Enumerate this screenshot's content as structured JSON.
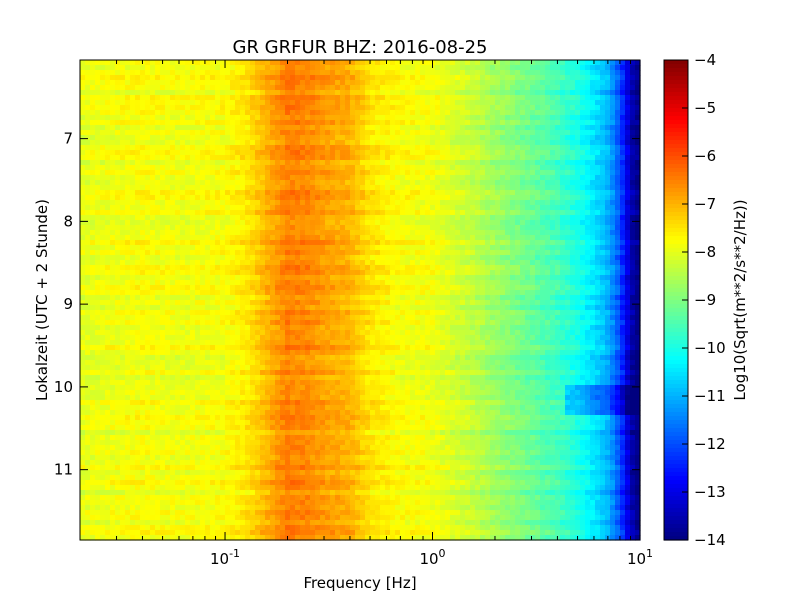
{
  "chart_data": {
    "type": "heatmap",
    "title": "GR GRFUR BHZ: 2016-08-25",
    "xlabel": "Frequency [Hz]",
    "ylabel": "Lokalzeit (UTC + 2 Stunde)",
    "x_scale": "log",
    "xlim": [
      0.02,
      10
    ],
    "x_ticks": [
      {
        "value": 0.1,
        "base": "10",
        "exp": "-1"
      },
      {
        "value": 1,
        "base": "10",
        "exp": "0"
      },
      {
        "value": 10,
        "base": "10",
        "exp": "1"
      }
    ],
    "ylim": [
      6.05,
      11.85
    ],
    "y_inverted": true,
    "y_ticks": [
      "7",
      "8",
      "9",
      "10",
      "11"
    ],
    "colorbar": {
      "label": "Log10(Sqrt(m**2/s**2/Hz))",
      "range": [
        -14,
        -4
      ],
      "ticks": [
        "-4",
        "-5",
        "-6",
        "-7",
        "-8",
        "-9",
        "-10",
        "-11",
        "-12",
        "-13",
        "-14"
      ],
      "colormap": "jet"
    },
    "spectrum_profile": {
      "frequency_hz": [
        0.02,
        0.04,
        0.06,
        0.1,
        0.13,
        0.16,
        0.2,
        0.25,
        0.3,
        0.4,
        0.5,
        0.7,
        1.0,
        1.5,
        2.0,
        3.0,
        4.0,
        5.0,
        6.0,
        7.0,
        8.0,
        9.0,
        10.0
      ],
      "log10_amplitude": [
        -8.0,
        -7.8,
        -7.9,
        -7.8,
        -7.5,
        -7.0,
        -6.5,
        -6.6,
        -6.8,
        -7.0,
        -7.5,
        -7.8,
        -7.9,
        -8.3,
        -8.7,
        -9.2,
        -9.6,
        -10.0,
        -10.5,
        -11.0,
        -12.0,
        -13.5,
        -14.0
      ]
    }
  }
}
